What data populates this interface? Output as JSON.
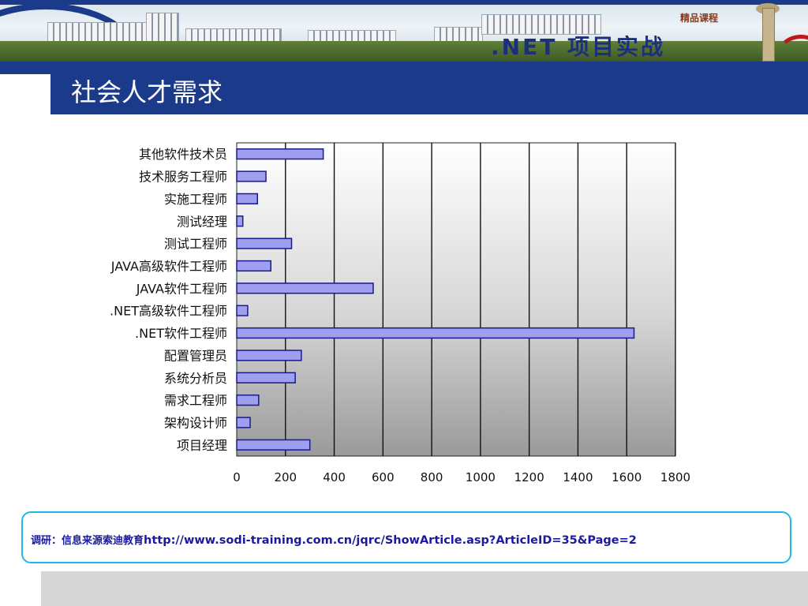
{
  "banner": {
    "course_tag": "精品课程",
    "course_name": ".NET 项目实战"
  },
  "slide": {
    "title": "社会人才需求"
  },
  "chart_data": {
    "type": "bar",
    "orientation": "horizontal",
    "categories": [
      "其他软件技术员",
      "技术服务工程师",
      "实施工程师",
      "测试经理",
      "测试工程师",
      "JAVA高级软件工程师",
      "JAVA软件工程师",
      ".NET高级软件工程师",
      ".NET软件工程师",
      "配置管理员",
      "系统分析员",
      "需求工程师",
      "架构设计师",
      "项目经理"
    ],
    "values": [
      355,
      120,
      85,
      25,
      225,
      140,
      560,
      45,
      1630,
      265,
      240,
      90,
      55,
      300
    ],
    "xlim": [
      0,
      1800
    ],
    "xticks": [
      0,
      200,
      400,
      600,
      800,
      1000,
      1200,
      1400,
      1600,
      1800
    ],
    "grid": "vertical",
    "bar_color": "#9f9ff0",
    "bar_edge_color": "#1a1a8c",
    "xlabel": "",
    "ylabel": ""
  },
  "source": {
    "prefix": "调研：信息来源索迪教育",
    "url": "http://www.sodi-training.com.cn/jqrc/ShowArticle.asp?ArticleID=35&Page=2"
  },
  "colors": {
    "header_blue": "#1c3a8a",
    "source_border": "#20b8e8",
    "source_text": "#1a1aa0"
  }
}
